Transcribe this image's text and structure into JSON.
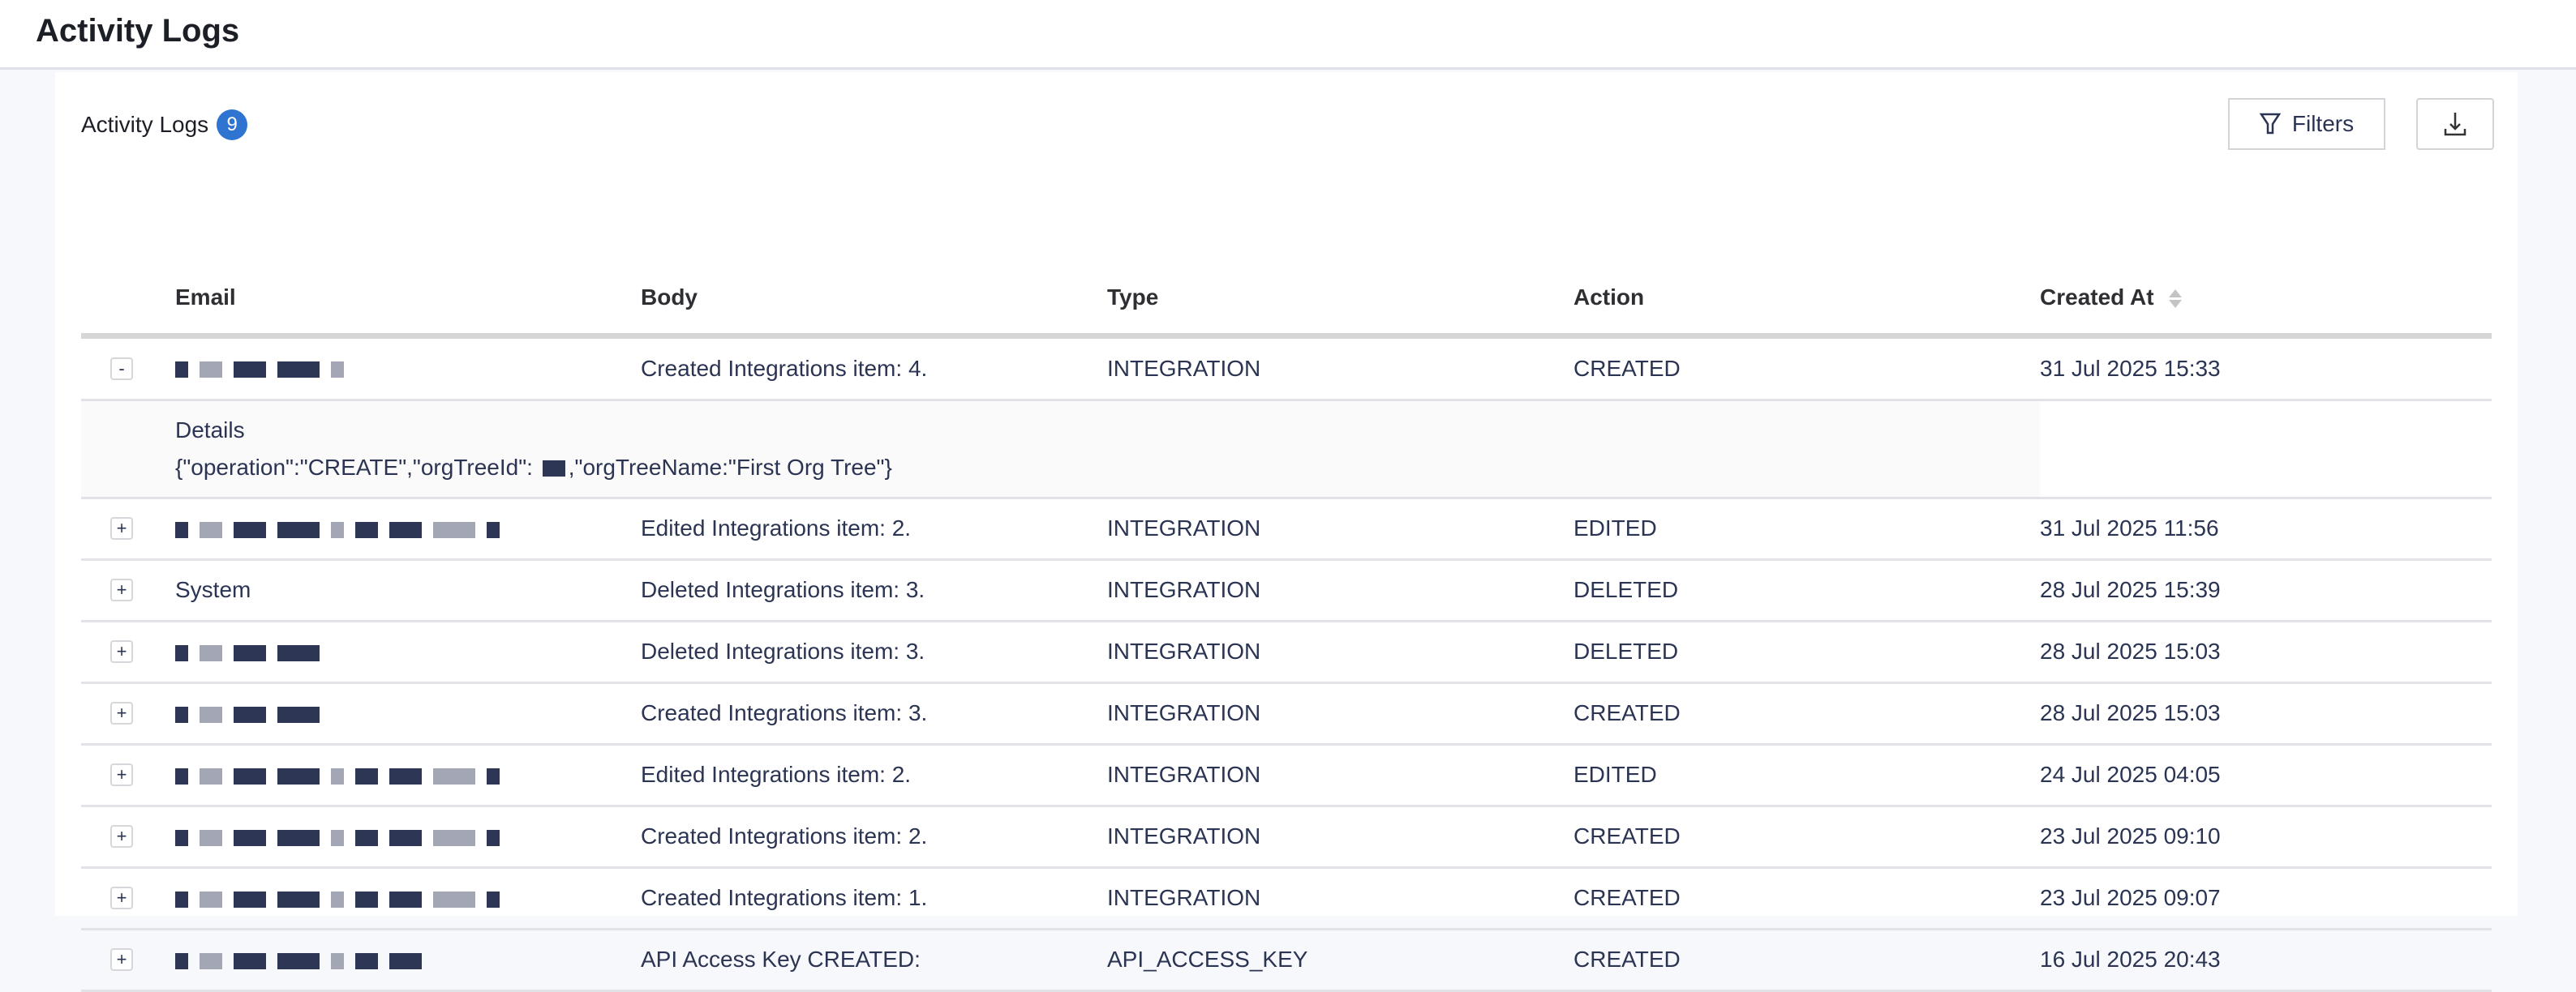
{
  "header": {
    "title": "Activity Logs"
  },
  "section": {
    "title": "Activity Logs",
    "count": "9"
  },
  "toolbar": {
    "filters_label": "Filters",
    "filter_icon": "funnel-icon",
    "download_icon": "download-icon"
  },
  "table": {
    "columns": [
      "Email",
      "Body",
      "Type",
      "Action",
      "Created At"
    ],
    "sort_icon": "sort-icon",
    "rows": [
      {
        "expander": "-",
        "email": "",
        "body": "Created Integrations item: 4.",
        "type": "INTEGRATION",
        "action": "CREATED",
        "created_at": "31 Jul 2025 15:33",
        "expanded": true
      },
      {
        "expander": "+",
        "email": "",
        "body": "Edited Integrations item: 2.",
        "type": "INTEGRATION",
        "action": "EDITED",
        "created_at": "31 Jul 2025 11:56"
      },
      {
        "expander": "+",
        "email": "System",
        "body": "Deleted Integrations item: 3.",
        "type": "INTEGRATION",
        "action": "DELETED",
        "created_at": "28 Jul 2025 15:39"
      },
      {
        "expander": "+",
        "email": "",
        "body": "Deleted Integrations item: 3.",
        "type": "INTEGRATION",
        "action": "DELETED",
        "created_at": "28 Jul 2025 15:03"
      },
      {
        "expander": "+",
        "email": "",
        "body": "Created Integrations item: 3.",
        "type": "INTEGRATION",
        "action": "CREATED",
        "created_at": "28 Jul 2025 15:03"
      },
      {
        "expander": "+",
        "email": "",
        "body": "Edited Integrations item: 2.",
        "type": "INTEGRATION",
        "action": "EDITED",
        "created_at": "24 Jul 2025 04:05"
      },
      {
        "expander": "+",
        "email": "",
        "body": "Created Integrations item: 2.",
        "type": "INTEGRATION",
        "action": "CREATED",
        "created_at": "23 Jul 2025 09:10"
      },
      {
        "expander": "+",
        "email": "",
        "body": "Created Integrations item: 1.",
        "type": "INTEGRATION",
        "action": "CREATED",
        "created_at": "23 Jul 2025 09:07"
      },
      {
        "expander": "+",
        "email": "",
        "body": "API Access Key CREATED:",
        "type": "API_ACCESS_KEY",
        "action": "CREATED",
        "created_at": "16 Jul 2025 20:43"
      }
    ],
    "detail": {
      "label": "Details",
      "json_prefix": "{\"operation\":\"CREATE\",\"orgTreeId\":",
      "json_suffix": ",\"orgTreeName:\"First Org Tree\"}"
    }
  },
  "colors": {
    "accent": "#2f74d0",
    "text": "#2b3452"
  }
}
